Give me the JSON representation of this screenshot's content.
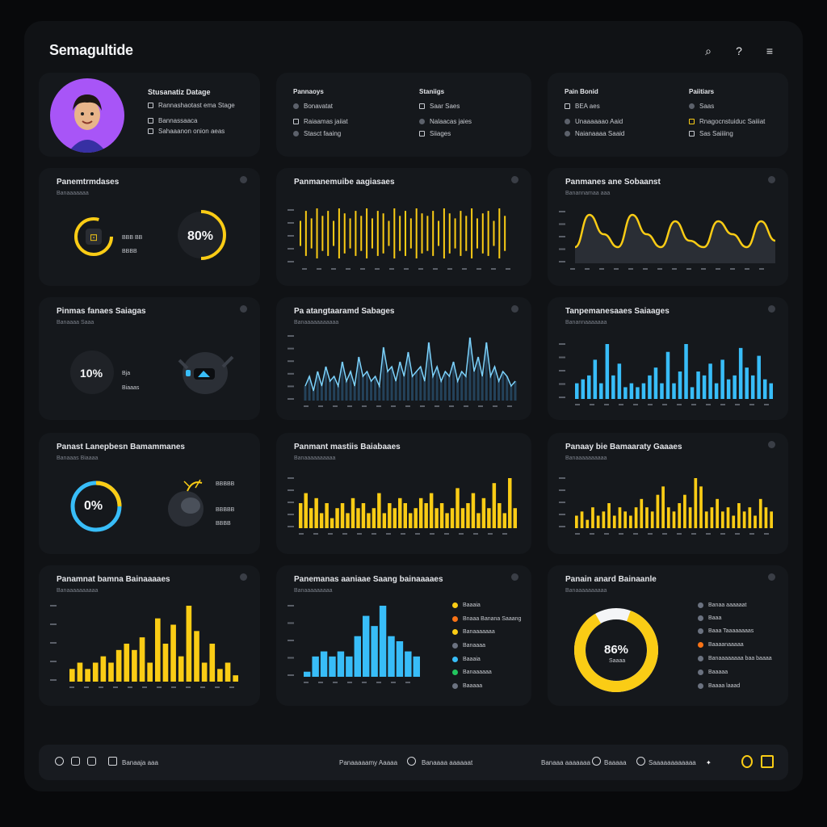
{
  "app": {
    "title": "Semagultide"
  },
  "colors": {
    "yellow": "#facc15",
    "cyan": "#38bdf8",
    "purple": "#a855f7"
  },
  "top_actions": [
    {
      "name": "search-icon",
      "glyph": "⌕"
    },
    {
      "name": "help-icon",
      "glyph": "?"
    },
    {
      "name": "menu-icon",
      "glyph": "≡"
    }
  ],
  "profile": {
    "title": "Stusanatiz Datage",
    "items": [
      "Rannashaotast ema Stage",
      "Bannassaaca",
      "Sahaaanon onion aeas"
    ]
  },
  "info2": {
    "col1_title": "Pannaoys",
    "col1_items": [
      "Bonavatat",
      "Raiaamas jaiiat",
      "Stasct faaing"
    ],
    "col2_title": "Staniigs",
    "col2_items": [
      "Saar Saes",
      "Nalaacas jaies",
      "Siiages"
    ]
  },
  "info3": {
    "col1_title": "Pain Bonid",
    "col1_items": [
      "BEA aes",
      "Unaaaaaao Aaid",
      "Naianaaaa Saaid"
    ],
    "col2_title": "Paiitiars",
    "col2_items": [
      "Saas",
      "Rnagocnstuiduc Saiiiat",
      "Sas Saiiiing"
    ]
  },
  "gauges1": {
    "title": "Panemtrmdases",
    "subtitle": "Banaaaaaaa",
    "label1": "BBB BB",
    "label2": "BBBB",
    "value": "80%"
  },
  "wave1": {
    "title": "Panmanemuibe aagiasaes",
    "ticks": [
      "BBB",
      "BBB",
      "BBB",
      "BBB",
      "BBB"
    ]
  },
  "wave2": {
    "title": "Panmanes ane Sobaanst",
    "subtitle": "Banannamaa aaa"
  },
  "gauges2": {
    "title": "Pinmas fanaes Saiagas",
    "subtitle": "Banaaaa Saaa",
    "value": "10%",
    "label1": "Bja",
    "label2": "Biaaas"
  },
  "area1": {
    "title": "Pa atangtaaramd Sabages",
    "subtitle": "Banaaaaaaaaaaa"
  },
  "bars_cyan": {
    "title": "Tanpemanesaaes Saiaages",
    "subtitle": "Banannaaaaaaa"
  },
  "gauges3": {
    "title": "Panast Lanepbesn Bamammanes",
    "subtitle": "Banaaas Biaaaa",
    "value": "0%",
    "label1": "BBBBB",
    "label2": "BBBBB",
    "label3": "BBBB"
  },
  "bars_y1": {
    "title": "Panmant mastiis Baiabaaes",
    "subtitle": "Banaaaaaaaaaa"
  },
  "bars_y2": {
    "title": "Panaay bie Bamaaraty Gaaaes",
    "subtitle": "Banaaaaaaaaaa"
  },
  "bars_y3": {
    "title": "Panamnat bamna Bainaaaaes",
    "subtitle": "Banaaaaaaaaaa"
  },
  "hist": {
    "title": "Panemanas aaniaae Saang bainaaaaes",
    "subtitle": "Banaaaaaaaaa",
    "legend": [
      "Baaaia",
      "Bnaaa Banana Saaang",
      "Banaaaaaaa",
      "Banaaaa",
      "Baaaia",
      "Banaaaaaa",
      "Baaaaa"
    ]
  },
  "donut": {
    "title": "Panain anard Bainaanle",
    "subtitle": "Banaaaaaaaaaa",
    "value": "86%",
    "caption": "Saaaa",
    "legend": [
      "Banaa aaaaaat",
      "Baaa",
      "Baaa Taaaaaaaas",
      "Baaaanaaaaa",
      "Banaaaaaaaa baa baaaa",
      "Baaaaa",
      "Baaaa laaad"
    ]
  },
  "footer": {
    "left_label": "Banaaja aaa",
    "center_label": "Panaaaaamy Aaaaa",
    "center2_label": "Banaaaa aaaaaat",
    "right_label1": "Banaaa aaaaaaa",
    "right_label2": "Baaaaa",
    "right_label3": "Saaaaaaaaaaaa"
  },
  "chart_data": [
    {
      "type": "bar",
      "title": "Panmanemuibe aagiasaes",
      "values": [
        5,
        9,
        6,
        10,
        7,
        9,
        5,
        10,
        8,
        6,
        9,
        7,
        10,
        6,
        9,
        8,
        5,
        10,
        7,
        9,
        6,
        10,
        8,
        7,
        9,
        5,
        10,
        8,
        6,
        9,
        7,
        10,
        6,
        8,
        9,
        5,
        10,
        7
      ],
      "color": "#facc15"
    },
    {
      "type": "line",
      "title": "Panmanes ane Sobaanst",
      "values": [
        1,
        6,
        3,
        1,
        6,
        3,
        1,
        5,
        2,
        1,
        5,
        3,
        1,
        5,
        2
      ],
      "color": "#facc15"
    },
    {
      "type": "area",
      "title": "Pa atangtaaramd Sabages",
      "values": [
        3,
        5,
        2,
        6,
        3,
        7,
        4,
        5,
        3,
        8,
        4,
        6,
        3,
        9,
        5,
        6,
        4,
        5,
        3,
        11,
        6,
        7,
        4,
        8,
        5,
        10,
        5,
        6,
        7,
        4,
        12,
        5,
        7,
        4,
        6,
        5,
        8,
        4,
        6,
        5,
        13,
        6,
        9,
        5,
        12,
        5,
        7,
        4,
        6,
        5,
        3,
        4
      ]
    },
    {
      "type": "bar",
      "title": "Tanpemanesaaes Saiaages",
      "values": [
        4,
        5,
        6,
        10,
        4,
        14,
        6,
        9,
        3,
        4,
        3,
        4,
        6,
        8,
        4,
        12,
        4,
        7,
        14,
        3,
        7,
        6,
        9,
        4,
        10,
        5,
        6,
        13,
        8,
        6,
        11,
        5,
        4
      ],
      "color": "#38bdf8"
    },
    {
      "type": "bar",
      "title": "Panmant mastiis Baiabaaes",
      "values": [
        5,
        7,
        4,
        6,
        3,
        5,
        2,
        4,
        5,
        3,
        6,
        4,
        5,
        3,
        4,
        7,
        3,
        5,
        4,
        6,
        5,
        3,
        4,
        6,
        5,
        7,
        4,
        5,
        3,
        4,
        8,
        4,
        5,
        7,
        3,
        6,
        4,
        9,
        5,
        3,
        10,
        4
      ],
      "color": "#facc15"
    },
    {
      "type": "bar",
      "title": "Panaay bie Bamaaraty Gaaaes",
      "values": [
        3,
        4,
        2,
        5,
        3,
        4,
        6,
        3,
        5,
        4,
        3,
        5,
        7,
        5,
        4,
        8,
        10,
        5,
        4,
        6,
        8,
        5,
        12,
        10,
        4,
        5,
        7,
        4,
        5,
        3,
        6,
        4,
        5,
        3,
        7,
        5,
        4
      ],
      "color": "#facc15"
    },
    {
      "type": "bar",
      "title": "Panamnat bamna Bainaaaaes",
      "values": [
        2,
        3,
        2,
        3,
        4,
        3,
        5,
        6,
        5,
        7,
        3,
        10,
        6,
        9,
        4,
        12,
        8,
        3,
        6,
        2,
        3,
        1
      ],
      "color": "#facc15"
    },
    {
      "type": "bar",
      "title": "Panemanas aaniaae Saang bainaaaaes",
      "values": [
        1,
        4,
        5,
        4,
        5,
        4,
        8,
        12,
        10,
        14,
        8,
        7,
        5,
        4
      ],
      "color": "#38bdf8"
    },
    {
      "type": "pie",
      "title": "Panain anard Bainaanle",
      "values": [
        86,
        14
      ],
      "labels": [
        "value",
        "rest"
      ]
    }
  ]
}
